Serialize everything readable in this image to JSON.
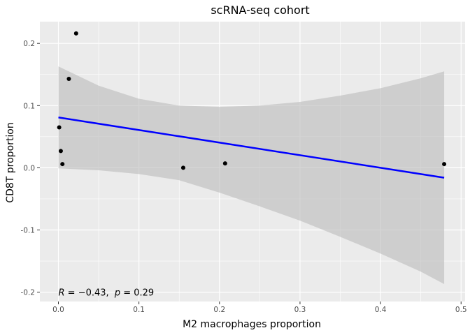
{
  "chart_data": {
    "type": "scatter",
    "title": "scRNA-seq cohort",
    "xlabel": "M2 macrophages proportion",
    "ylabel": "CD8T proportion",
    "xlim": [
      -0.023,
      0.505
    ],
    "ylim": [
      -0.215,
      0.235
    ],
    "x_ticks": [
      0.0,
      0.1,
      0.2,
      0.3,
      0.4,
      0.5
    ],
    "x_tick_labels": [
      "0.0",
      "0.1",
      "0.2",
      "0.3",
      "0.4",
      "0.5"
    ],
    "y_ticks": [
      -0.2,
      -0.1,
      0.0,
      0.1,
      0.2
    ],
    "y_tick_labels": [
      "-0.2",
      "-0.1",
      "0.0",
      "0.1",
      "0.2"
    ],
    "grid": true,
    "points": [
      {
        "x": 0.022,
        "y": 0.216
      },
      {
        "x": 0.013,
        "y": 0.143
      },
      {
        "x": 0.001,
        "y": 0.065
      },
      {
        "x": 0.003,
        "y": 0.027
      },
      {
        "x": 0.005,
        "y": 0.006
      },
      {
        "x": 0.155,
        "y": 0.0
      },
      {
        "x": 0.207,
        "y": 0.007
      },
      {
        "x": 0.479,
        "y": 0.006
      }
    ],
    "regression_line": {
      "x": [
        0.0,
        0.479
      ],
      "y": [
        0.081,
        -0.016
      ],
      "color": "#0000ff"
    },
    "confidence_band": {
      "x": [
        0.0,
        0.05,
        0.1,
        0.15,
        0.2,
        0.25,
        0.3,
        0.35,
        0.4,
        0.45,
        0.479
      ],
      "upper": [
        0.163,
        0.132,
        0.111,
        0.1,
        0.098,
        0.1,
        0.106,
        0.116,
        0.128,
        0.144,
        0.155
      ],
      "lower": [
        -0.001,
        -0.004,
        -0.01,
        -0.02,
        -0.04,
        -0.062,
        -0.085,
        -0.111,
        -0.138,
        -0.167,
        -0.187
      ],
      "color": "#bfbfbf"
    },
    "annotation": {
      "r_label": "R",
      "r_value": "= −0.43,",
      "p_label": "p",
      "p_value": "= 0.29",
      "x": 0.0,
      "y": -0.2
    },
    "panel_background": "#ebebeb",
    "grid_color": "#ffffff",
    "point_color": "#000000"
  }
}
